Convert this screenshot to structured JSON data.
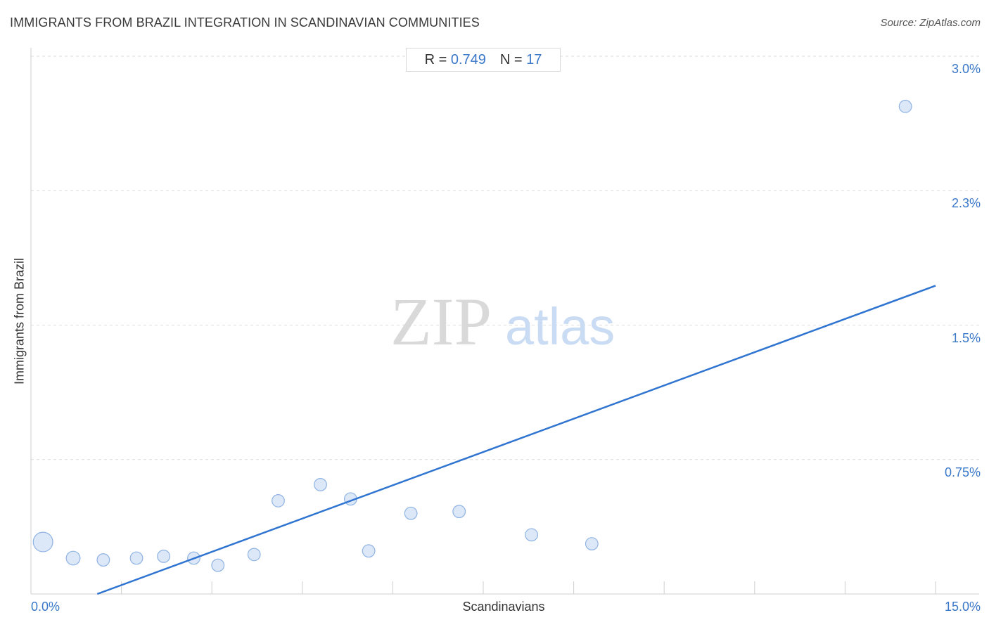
{
  "header": {
    "title": "IMMIGRANTS FROM BRAZIL INTEGRATION IN SCANDINAVIAN COMMUNITIES",
    "source": "Source: ZipAtlas.com"
  },
  "stats": {
    "r_label": "R =",
    "r_value": "0.749",
    "n_label": "N =",
    "n_value": "17"
  },
  "watermark": {
    "zip": "ZIP",
    "atlas": "atlas"
  },
  "colors": {
    "accent": "#3a78c9",
    "point_fill": "#dce8f8",
    "point_stroke": "#8fb3e3",
    "trend_line": "#2f74d0"
  },
  "chart_data": {
    "type": "scatter",
    "title": "IMMIGRANTS FROM BRAZIL INTEGRATION IN SCANDINAVIAN COMMUNITIES",
    "xlabel": "Scandinavians",
    "ylabel": "Immigrants from Brazil",
    "xlim": [
      0,
      15
    ],
    "ylim": [
      0,
      3.0
    ],
    "x_tick_labels": [
      "0.0%",
      "15.0%"
    ],
    "y_ticks": [
      {
        "value": 3.0,
        "label": "3.0%"
      },
      {
        "value": 2.25,
        "label": "2.3%"
      },
      {
        "value": 1.5,
        "label": "1.5%"
      },
      {
        "value": 0.75,
        "label": "0.75%"
      }
    ],
    "grid": true,
    "points": [
      {
        "x": 0.2,
        "y": 0.29,
        "weight": 3
      },
      {
        "x": 0.7,
        "y": 0.2,
        "weight": 1.5
      },
      {
        "x": 1.2,
        "y": 0.19,
        "weight": 1.2
      },
      {
        "x": 1.75,
        "y": 0.2,
        "weight": 1.2
      },
      {
        "x": 2.2,
        "y": 0.21,
        "weight": 1.2
      },
      {
        "x": 2.7,
        "y": 0.2,
        "weight": 1.2
      },
      {
        "x": 3.1,
        "y": 0.16,
        "weight": 1.2
      },
      {
        "x": 3.7,
        "y": 0.22,
        "weight": 1.2
      },
      {
        "x": 4.1,
        "y": 0.52,
        "weight": 1.2
      },
      {
        "x": 4.8,
        "y": 0.61,
        "weight": 1.2
      },
      {
        "x": 5.3,
        "y": 0.53,
        "weight": 1.2
      },
      {
        "x": 5.6,
        "y": 0.24,
        "weight": 1.2
      },
      {
        "x": 6.3,
        "y": 0.45,
        "weight": 1.2
      },
      {
        "x": 7.1,
        "y": 0.46,
        "weight": 1.2
      },
      {
        "x": 8.3,
        "y": 0.33,
        "weight": 1.2
      },
      {
        "x": 9.3,
        "y": 0.28,
        "weight": 1.2
      },
      {
        "x": 14.5,
        "y": 2.72,
        "weight": 1.2
      }
    ],
    "trendline": {
      "x": [
        1.1,
        15.0
      ],
      "y": [
        0.0,
        1.72
      ]
    }
  }
}
